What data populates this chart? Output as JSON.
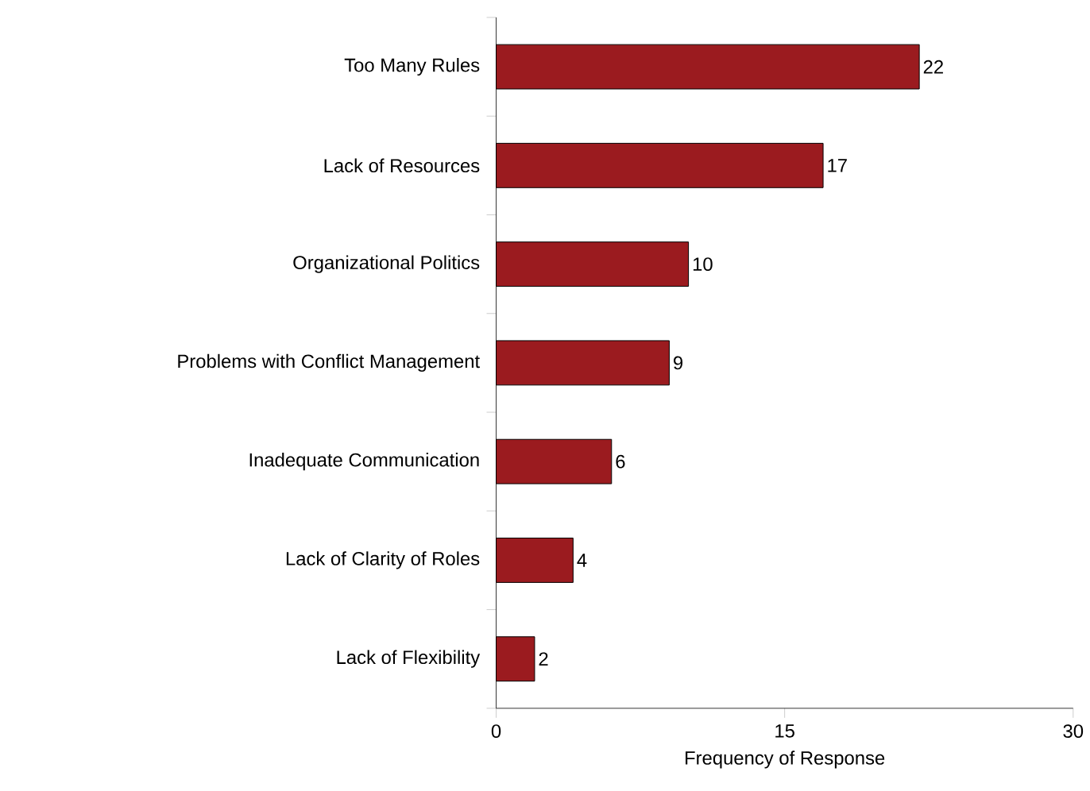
{
  "chart_data": {
    "type": "bar",
    "orientation": "horizontal",
    "xlabel": "Frequency of Response",
    "categories": [
      "Too Many Rules",
      "Lack of Resources",
      "Organizational Politics",
      "Problems with Conflict Management",
      "Inadequate Communication",
      "Lack of Clarity of Roles",
      "Lack of Flexibility"
    ],
    "values": [
      22,
      17,
      10,
      9,
      6,
      4,
      2
    ],
    "color": "#9b1b1f",
    "xlim": [
      0,
      30
    ],
    "xticks": [
      0,
      15,
      30
    ],
    "data_labels": true
  }
}
